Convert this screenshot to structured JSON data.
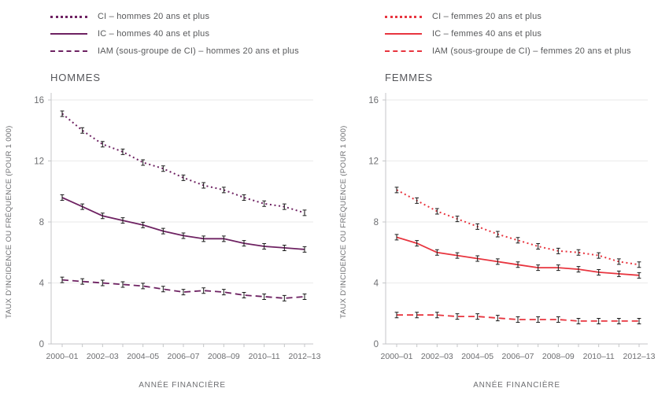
{
  "page": {
    "background": "#ffffff",
    "text_color": "#6d6e71",
    "grid_color": "#eaeaea",
    "axis_color": "#c4c6c8",
    "error_bar_color": "#1a1a1a"
  },
  "chart_data": [
    {
      "type": "line",
      "title": "HOMMES",
      "xlabel": "ANNÉE FINANCIÈRE",
      "ylabel": "TAUX D’INCIDENCE OU FRÉQUENCE (POUR 1 000)",
      "ylim": [
        0,
        16
      ],
      "yticks": [
        0,
        4,
        8,
        12,
        16
      ],
      "grid": "horizontal",
      "legend_position": "top-left",
      "error_bars": true,
      "accent_color": "#6e2262",
      "categories": [
        "2000–01",
        "2001–02",
        "2002–03",
        "2003–04",
        "2004–05",
        "2005–06",
        "2006–07",
        "2007–08",
        "2008–09",
        "2009–10",
        "2010–11",
        "2011–12",
        "2012–13"
      ],
      "xtick_labels_shown": [
        "2000–01",
        "2002–03",
        "2004–05",
        "2006–07",
        "2008–09",
        "2010–11",
        "2012–13"
      ],
      "series": [
        {
          "name": "CI – hommes 20 ans et plus",
          "line_style": "dotted",
          "color": "#6e2262",
          "values": [
            15.1,
            14.0,
            13.1,
            12.6,
            11.9,
            11.5,
            10.9,
            10.4,
            10.1,
            9.6,
            9.2,
            9.0,
            8.6
          ]
        },
        {
          "name": "IC – hommes 40 ans et plus",
          "line_style": "solid",
          "color": "#6e2262",
          "values": [
            9.6,
            9.0,
            8.4,
            8.1,
            7.8,
            7.4,
            7.1,
            6.9,
            6.9,
            6.6,
            6.4,
            6.3,
            6.2
          ]
        },
        {
          "name": "IAM (sous-groupe de CI) – hommes 20 ans et plus",
          "line_style": "dashed",
          "color": "#6e2262",
          "values": [
            4.2,
            4.1,
            4.0,
            3.9,
            3.8,
            3.6,
            3.4,
            3.5,
            3.4,
            3.2,
            3.1,
            3.0,
            3.1
          ]
        }
      ]
    },
    {
      "type": "line",
      "title": "FEMMES",
      "xlabel": "ANNÉE FINANCIÈRE",
      "ylabel": "TAUX D’INCIDENCE OU FRÉQUENCE (POUR 1 000)",
      "ylim": [
        0,
        16
      ],
      "yticks": [
        0,
        4,
        8,
        12,
        16
      ],
      "grid": "horizontal",
      "legend_position": "top-left",
      "error_bars": true,
      "accent_color": "#e8353f",
      "categories": [
        "2000–01",
        "2001–02",
        "2002–03",
        "2003–04",
        "2004–05",
        "2005–06",
        "2006–07",
        "2007–08",
        "2008–09",
        "2009–10",
        "2010–11",
        "2011–12",
        "2012–13"
      ],
      "xtick_labels_shown": [
        "2000–01",
        "2002–03",
        "2004–05",
        "2006–07",
        "2008–09",
        "2010–11",
        "2012–13"
      ],
      "series": [
        {
          "name": "CI – femmes 20 ans et plus",
          "line_style": "dotted",
          "color": "#e8353f",
          "values": [
            10.1,
            9.4,
            8.7,
            8.2,
            7.7,
            7.2,
            6.8,
            6.4,
            6.1,
            6.0,
            5.8,
            5.4,
            5.2
          ]
        },
        {
          "name": "IC – femmes 40 ans et plus",
          "line_style": "solid",
          "color": "#e8353f",
          "values": [
            7.0,
            6.6,
            6.0,
            5.8,
            5.6,
            5.4,
            5.2,
            5.0,
            5.0,
            4.9,
            4.7,
            4.6,
            4.5
          ]
        },
        {
          "name": "IAM (sous-groupe de CI) – femmes 20 ans et plus",
          "line_style": "dashed",
          "color": "#e8353f",
          "values": [
            1.9,
            1.9,
            1.9,
            1.8,
            1.8,
            1.7,
            1.6,
            1.6,
            1.6,
            1.5,
            1.5,
            1.5,
            1.5
          ]
        }
      ]
    }
  ]
}
